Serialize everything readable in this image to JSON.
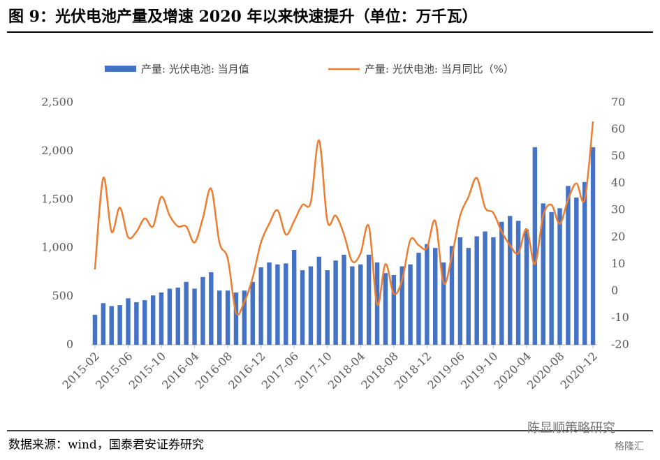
{
  "chart_data": {
    "type": "bar-line",
    "title": "图 9：光伏电池产量及增速 2020 年以来快速提升（单位：万千瓦）",
    "source": "数据来源：wind，国泰君安证券研究",
    "watermark": "陈显顺策略研究",
    "logo": "格隆汇",
    "categories": [
      "2015-02",
      null,
      null,
      null,
      "2015-06",
      null,
      null,
      null,
      "2015-10",
      null,
      null,
      null,
      "2016-04",
      null,
      null,
      null,
      "2016-08",
      null,
      null,
      null,
      "2016-12",
      null,
      null,
      null,
      "2017-06",
      null,
      null,
      null,
      "2017-10",
      null,
      null,
      null,
      "2018-04",
      null,
      null,
      null,
      "2018-08",
      null,
      null,
      null,
      "2018-12",
      null,
      null,
      null,
      "2019-06",
      null,
      null,
      null,
      "2019-10",
      null,
      null,
      null,
      "2020-04",
      null,
      null,
      null,
      "2020-08",
      null,
      null,
      null,
      "2020-12"
    ],
    "series": [
      {
        "name": "产量: 光伏电池: 当月值",
        "type": "bar",
        "color": "#4472c4",
        "axis": "y",
        "values": [
          310,
          430,
          400,
          410,
          480,
          440,
          460,
          510,
          540,
          580,
          590,
          650,
          580,
          700,
          750,
          560,
          560,
          540,
          560,
          650,
          800,
          850,
          830,
          840,
          980,
          770,
          810,
          910,
          770,
          870,
          930,
          810,
          830,
          930,
          850,
          740,
          720,
          810,
          830,
          950,
          1040,
          1000,
          850,
          1020,
          1110,
          1000,
          1120,
          1170,
          1110,
          1270,
          1330,
          1280,
          1190,
          2040,
          1460,
          1370,
          1410,
          1640,
          1520,
          1680,
          2040
        ]
      },
      {
        "name": "产量: 光伏电池: 当月同比（%）",
        "type": "line",
        "color": "#ed7d31",
        "axis": "y2",
        "values": [
          8,
          42,
          22,
          31,
          20,
          22,
          27,
          24,
          35,
          28,
          24,
          24,
          18,
          27,
          38,
          18,
          12,
          -8,
          -4,
          5,
          18,
          25,
          30,
          21,
          26,
          32,
          33,
          56,
          26,
          28,
          21,
          11,
          14,
          24,
          -5,
          10,
          -1,
          4,
          19,
          17,
          16,
          26,
          3,
          13,
          28,
          35,
          42,
          31,
          29,
          22,
          17,
          14,
          23,
          10,
          28,
          32,
          25,
          34,
          40,
          34,
          63
        ]
      }
    ],
    "ylim": [
      0,
      2500
    ],
    "yticks": [
      0,
      500,
      {
        "value": 1000,
        "label": "1,000"
      },
      {
        "value": 1500,
        "label": "1,500"
      },
      {
        "value": 2000,
        "label": "2,000"
      },
      {
        "value": 2500,
        "label": "2,500"
      }
    ],
    "y2lim": [
      -20,
      70
    ],
    "y2ticks": [
      -20,
      -10,
      0,
      10,
      20,
      30,
      40,
      50,
      60,
      70
    ],
    "grid": false,
    "legend": "top"
  }
}
